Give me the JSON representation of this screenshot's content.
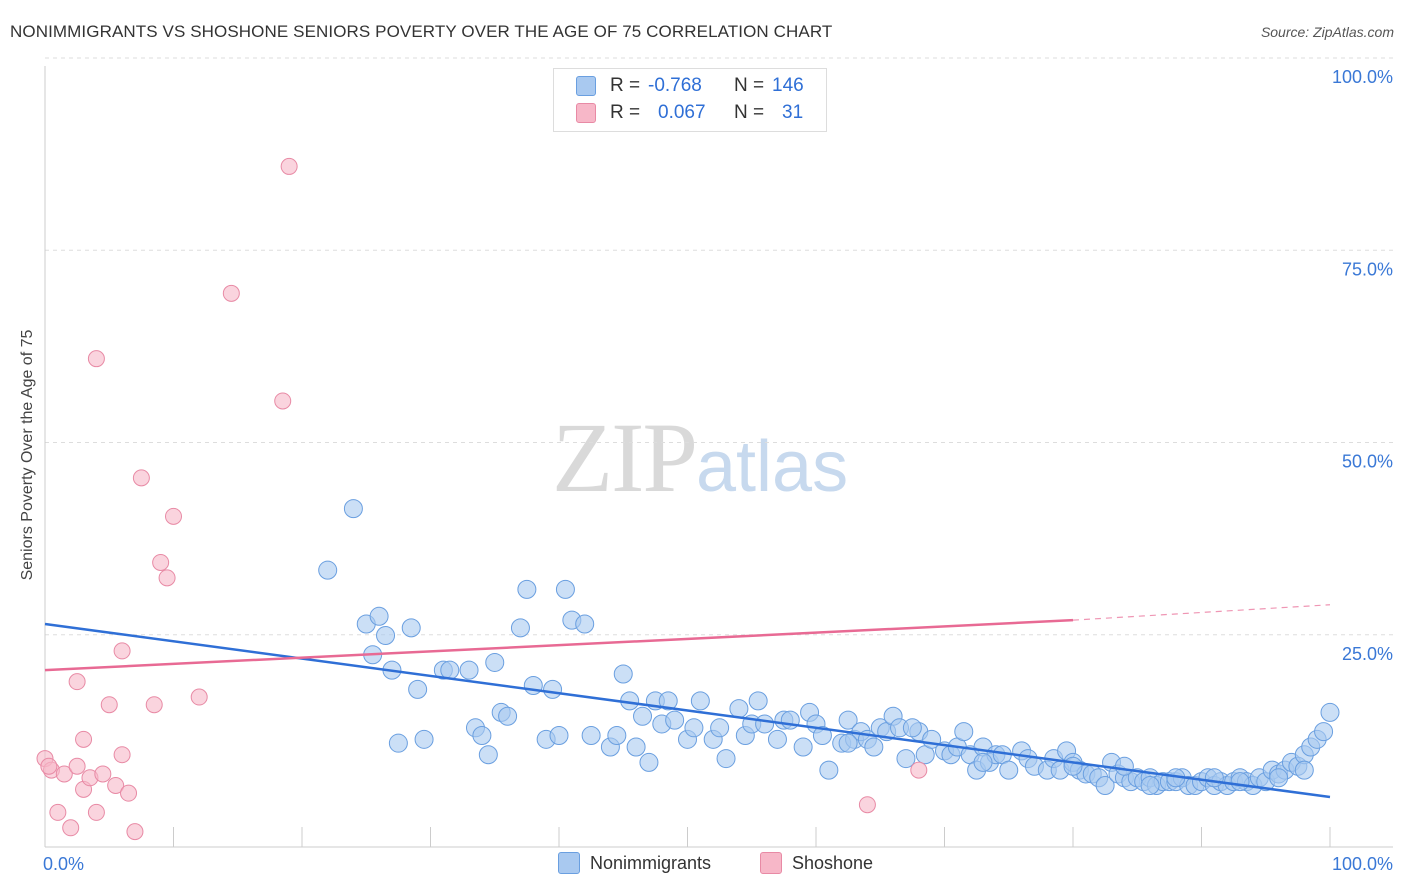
{
  "title": "NONIMMIGRANTS VS SHOSHONE SENIORS POVERTY OVER THE AGE OF 75 CORRELATION CHART",
  "source": "Source: ZipAtlas.com",
  "watermark": {
    "zip": "ZIP",
    "atlas": "atlas"
  },
  "legend": {
    "rows": [
      {
        "r_label": "R =",
        "r_value": "-0.768",
        "n_label": "N =",
        "n_value": "146",
        "color": "#a9c9f0"
      },
      {
        "r_label": "R =",
        "r_value": "0.067",
        "n_label": "N =",
        "n_value": "31",
        "color": "#f7b7c8"
      }
    ]
  },
  "bottom_legend": [
    {
      "label": "Nonimmigrants",
      "color": "#a9c9f0"
    },
    {
      "label": "Shoshone",
      "color": "#f7b7c8"
    }
  ],
  "chart_data": {
    "type": "scatter",
    "title": "NONIMMIGRANTS VS SHOSHONE SENIORS POVERTY OVER THE AGE OF 75 CORRELATION CHART",
    "xlabel": "",
    "ylabel": "Seniors Poverty Over the Age of 75",
    "xlim": [
      0,
      100
    ],
    "ylim": [
      0,
      100
    ],
    "x_tick_labels": [
      "0.0%",
      "100.0%"
    ],
    "y_tick_labels": [
      "100.0%",
      "75.0%",
      "50.0%",
      "25.0%"
    ],
    "y_ticks": [
      100,
      75,
      50,
      25
    ],
    "grid": true,
    "series": [
      {
        "name": "Nonimmigrants",
        "color": "#a9c9f0",
        "stroke": "#6a9fe0",
        "line_color": "#2f6fd6",
        "trend": {
          "x": [
            0,
            100
          ],
          "y": [
            29.0,
            6.5
          ]
        },
        "points": [
          [
            22,
            36
          ],
          [
            24,
            44
          ],
          [
            25,
            29
          ],
          [
            25.5,
            25
          ],
          [
            26,
            30
          ],
          [
            26.5,
            27.5
          ],
          [
            27,
            23
          ],
          [
            27.5,
            13.5
          ],
          [
            28.5,
            28.5
          ],
          [
            29,
            20.5
          ],
          [
            29.5,
            14
          ],
          [
            31,
            23
          ],
          [
            31.5,
            23
          ],
          [
            33,
            23
          ],
          [
            33.5,
            15.5
          ],
          [
            34,
            14.5
          ],
          [
            34.5,
            12
          ],
          [
            35,
            24
          ],
          [
            35.5,
            17.5
          ],
          [
            36,
            17
          ],
          [
            37,
            28.5
          ],
          [
            37.5,
            33.5
          ],
          [
            38,
            21
          ],
          [
            39,
            14
          ],
          [
            39.5,
            20.5
          ],
          [
            40,
            14.5
          ],
          [
            40.5,
            33.5
          ],
          [
            41,
            29.5
          ],
          [
            42,
            29
          ],
          [
            42.5,
            14.5
          ],
          [
            44,
            13
          ],
          [
            44.5,
            14.5
          ],
          [
            45,
            22.5
          ],
          [
            45.5,
            19
          ],
          [
            46,
            13
          ],
          [
            46.5,
            17
          ],
          [
            47,
            11
          ],
          [
            47.5,
            19
          ],
          [
            48,
            16
          ],
          [
            48.5,
            19
          ],
          [
            49,
            16.5
          ],
          [
            50,
            14
          ],
          [
            50.5,
            15.5
          ],
          [
            51,
            19
          ],
          [
            52,
            14
          ],
          [
            52.5,
            15.5
          ],
          [
            53,
            11.5
          ],
          [
            54,
            18
          ],
          [
            54.5,
            14.5
          ],
          [
            55,
            16
          ],
          [
            55.5,
            19
          ],
          [
            56,
            16
          ],
          [
            57,
            14
          ],
          [
            57.5,
            16.5
          ],
          [
            58,
            16.5
          ],
          [
            59,
            13
          ],
          [
            59.5,
            17.5
          ],
          [
            60,
            16
          ],
          [
            60.5,
            14.5
          ],
          [
            61,
            10
          ],
          [
            62,
            13.5
          ],
          [
            62.5,
            16.5
          ],
          [
            63,
            14
          ],
          [
            63.5,
            15
          ],
          [
            64,
            14
          ],
          [
            64.5,
            13
          ],
          [
            65,
            15.5
          ],
          [
            65.5,
            15
          ],
          [
            66,
            17
          ],
          [
            66.5,
            15.5
          ],
          [
            67,
            11.5
          ],
          [
            68,
            15
          ],
          [
            68.5,
            12
          ],
          [
            69,
            14
          ],
          [
            70,
            12.5
          ],
          [
            70.5,
            12
          ],
          [
            71,
            13
          ],
          [
            72,
            12
          ],
          [
            72.5,
            10
          ],
          [
            73,
            13
          ],
          [
            73.5,
            11
          ],
          [
            74,
            12
          ],
          [
            74.5,
            12
          ],
          [
            75,
            10
          ],
          [
            76,
            12.5
          ],
          [
            76.5,
            11.5
          ],
          [
            77,
            10.5
          ],
          [
            78,
            10
          ],
          [
            78.5,
            11.5
          ],
          [
            79,
            10
          ],
          [
            79.5,
            12.5
          ],
          [
            80,
            11
          ],
          [
            80.5,
            10
          ],
          [
            81,
            9.5
          ],
          [
            81.5,
            9.5
          ],
          [
            82,
            9
          ],
          [
            82.5,
            8
          ],
          [
            83,
            11
          ],
          [
            83.5,
            9.5
          ],
          [
            84,
            9
          ],
          [
            84.5,
            8.5
          ],
          [
            85,
            9
          ],
          [
            85.5,
            8.5
          ],
          [
            86,
            9
          ],
          [
            86.5,
            8
          ],
          [
            87,
            8.5
          ],
          [
            87.5,
            8.5
          ],
          [
            88,
            8.5
          ],
          [
            88.5,
            9
          ],
          [
            89,
            8
          ],
          [
            89.5,
            8
          ],
          [
            90,
            8.5
          ],
          [
            90.5,
            9
          ],
          [
            91,
            8
          ],
          [
            91.5,
            8.5
          ],
          [
            92,
            8
          ],
          [
            92.5,
            8.5
          ],
          [
            93,
            9
          ],
          [
            93.5,
            8.5
          ],
          [
            94,
            8
          ],
          [
            94.5,
            9
          ],
          [
            95,
            8.5
          ],
          [
            95.5,
            10
          ],
          [
            96,
            9.5
          ],
          [
            96.5,
            10
          ],
          [
            97,
            11
          ],
          [
            97.5,
            10.5
          ],
          [
            98,
            12
          ],
          [
            98.5,
            13
          ],
          [
            99,
            14
          ],
          [
            99.5,
            15
          ],
          [
            100,
            17.5
          ],
          [
            62.5,
            13.5
          ],
          [
            67.5,
            15.5
          ],
          [
            71.5,
            15
          ],
          [
            73,
            11
          ],
          [
            80,
            10.5
          ],
          [
            84,
            10.5
          ],
          [
            86,
            8
          ],
          [
            88,
            9
          ],
          [
            91,
            9
          ],
          [
            93,
            8.5
          ],
          [
            96,
            9
          ],
          [
            98,
            10
          ]
        ]
      },
      {
        "name": "Shoshone",
        "color": "#f7b7c8",
        "stroke": "#e88aa5",
        "line_color": "#e86a94",
        "trend": {
          "x": [
            0,
            80
          ],
          "y": [
            23.0,
            29.5
          ]
        },
        "trend_dashed": {
          "x": [
            80,
            100
          ],
          "y": [
            29.5,
            31.5
          ]
        },
        "points": [
          [
            0,
            11.5
          ],
          [
            0.5,
            10
          ],
          [
            1,
            4.5
          ],
          [
            1.5,
            9.5
          ],
          [
            2,
            2.5
          ],
          [
            2.5,
            21.5
          ],
          [
            2.5,
            10.5
          ],
          [
            3,
            14
          ],
          [
            3,
            7.5
          ],
          [
            3.5,
            9
          ],
          [
            4,
            4.5
          ],
          [
            4,
            63.5
          ],
          [
            4.5,
            9.5
          ],
          [
            5,
            18.5
          ],
          [
            5.5,
            8
          ],
          [
            6,
            25.5
          ],
          [
            6,
            12
          ],
          [
            6.5,
            7
          ],
          [
            7,
            2
          ],
          [
            7.5,
            48
          ],
          [
            8.5,
            18.5
          ],
          [
            9,
            37
          ],
          [
            9.5,
            35
          ],
          [
            10,
            43
          ],
          [
            12,
            19.5
          ],
          [
            14.5,
            72
          ],
          [
            18.5,
            58
          ],
          [
            19,
            88.5
          ],
          [
            64,
            5.5
          ],
          [
            68,
            10
          ],
          [
            0.3,
            10.5
          ]
        ]
      }
    ]
  }
}
